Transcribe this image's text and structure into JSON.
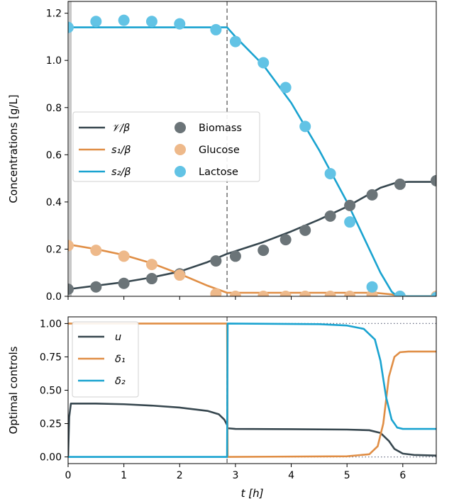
{
  "chart_data": [
    {
      "type": "line",
      "panel": "top",
      "ylabel": "Concentrations [g/L]",
      "xlim": [
        0,
        6.6
      ],
      "ylim": [
        0,
        1.25
      ],
      "xticks": [
        0,
        1,
        2,
        3,
        4,
        5,
        6
      ],
      "yticks": [
        0.0,
        0.2,
        0.4,
        0.6,
        0.8,
        1.0,
        1.2
      ],
      "ytick_labels": [
        "0.0",
        "0.2",
        "0.4",
        "0.6",
        "0.8",
        "1.0",
        "1.2"
      ],
      "vline_x": 2.85,
      "grid": false,
      "legend_placement": "center-left",
      "series": [
        {
          "name": "𝒱/β",
          "kind": "line",
          "color": "#37474f",
          "x": [
            0,
            0.5,
            1.0,
            1.5,
            2.0,
            2.5,
            2.85,
            3.5,
            4.0,
            4.5,
            5.0,
            5.3,
            5.6,
            5.9,
            6.1,
            6.6
          ],
          "y": [
            0.03,
            0.045,
            0.06,
            0.08,
            0.105,
            0.145,
            0.18,
            0.23,
            0.275,
            0.325,
            0.38,
            0.42,
            0.46,
            0.483,
            0.485,
            0.485
          ]
        },
        {
          "name": "s₁/β",
          "kind": "line",
          "color": "#e08e45",
          "x": [
            0,
            0.5,
            1.0,
            1.5,
            2.0,
            2.5,
            2.85,
            3.5,
            4.5,
            5.5,
            5.8,
            6.0,
            6.6
          ],
          "y": [
            0.22,
            0.2,
            0.175,
            0.14,
            0.095,
            0.045,
            0.015,
            0.015,
            0.015,
            0.015,
            0.008,
            0.0,
            0.0
          ]
        },
        {
          "name": "s₂/β",
          "kind": "line",
          "color": "#1aa3d0",
          "x": [
            0,
            2.85,
            3.0,
            3.5,
            4.0,
            4.5,
            5.0,
            5.3,
            5.6,
            5.8,
            5.9,
            6.6
          ],
          "y": [
            1.14,
            1.14,
            1.1,
            0.98,
            0.82,
            0.62,
            0.4,
            0.25,
            0.1,
            0.02,
            0.0,
            0.0
          ]
        },
        {
          "name": "Biomass",
          "kind": "scatter",
          "color": "#6b7478",
          "x": [
            0.0,
            0.5,
            1.0,
            1.5,
            2.0,
            2.65,
            3.0,
            3.5,
            3.9,
            4.25,
            4.7,
            5.05,
            5.45,
            5.95,
            6.6
          ],
          "y": [
            0.03,
            0.04,
            0.055,
            0.075,
            0.095,
            0.15,
            0.17,
            0.195,
            0.24,
            0.28,
            0.34,
            0.385,
            0.43,
            0.475,
            0.49
          ]
        },
        {
          "name": "Glucose",
          "kind": "scatter",
          "color": "#eeb98a",
          "x": [
            0.0,
            0.5,
            1.0,
            1.5,
            2.0,
            2.65,
            3.0,
            3.5,
            3.9,
            4.25,
            4.7,
            5.05,
            5.45,
            5.95,
            6.6
          ],
          "y": [
            0.215,
            0.195,
            0.17,
            0.135,
            0.09,
            0.01,
            0.0,
            0.0,
            0.0,
            0.0,
            0.0,
            0.0,
            0.005,
            0.0,
            0.0
          ]
        },
        {
          "name": "Lactose",
          "kind": "scatter",
          "color": "#62c3e5",
          "x": [
            0.0,
            0.5,
            1.0,
            1.5,
            2.0,
            2.65,
            3.0,
            3.5,
            3.9,
            4.25,
            4.7,
            5.05,
            5.45,
            5.95,
            6.6
          ],
          "y": [
            1.14,
            1.165,
            1.17,
            1.165,
            1.155,
            1.13,
            1.08,
            0.99,
            0.885,
            0.72,
            0.52,
            0.315,
            0.04,
            0.0,
            -0.005
          ]
        }
      ]
    },
    {
      "type": "line",
      "panel": "bottom",
      "xlabel": "t [h]",
      "ylabel": "Optimal controls",
      "xlim": [
        0,
        6.6
      ],
      "ylim": [
        -0.05,
        1.05
      ],
      "xticks": [
        0,
        1,
        2,
        3,
        4,
        5,
        6
      ],
      "yticks": [
        0.0,
        0.25,
        0.5,
        0.75,
        1.0
      ],
      "ytick_labels": [
        "0.00",
        "0.25",
        "0.50",
        "0.75",
        "1.00"
      ],
      "hlines": [
        0,
        1
      ],
      "vline_x": 2.85,
      "grid": false,
      "legend_placement": "top-left",
      "series": [
        {
          "name": "u",
          "color": "#37474f",
          "x": [
            0,
            0.02,
            0.05,
            0.5,
            1.0,
            1.5,
            2.0,
            2.5,
            2.7,
            2.8,
            2.85,
            2.86,
            3.0,
            4.0,
            5.0,
            5.4,
            5.6,
            5.75,
            5.85,
            6.0,
            6.2,
            6.6
          ],
          "y": [
            0,
            0.3,
            0.4,
            0.4,
            0.395,
            0.385,
            0.37,
            0.345,
            0.32,
            0.28,
            0.24,
            0.215,
            0.21,
            0.208,
            0.205,
            0.2,
            0.18,
            0.12,
            0.06,
            0.025,
            0.015,
            0.01
          ]
        },
        {
          "name": "δ₁",
          "color": "#e08e45",
          "x": [
            0,
            2.85,
            2.86,
            5.0,
            5.4,
            5.55,
            5.65,
            5.75,
            5.85,
            5.95,
            6.1,
            6.6
          ],
          "y": [
            1.0,
            1.0,
            0.0,
            0.005,
            0.02,
            0.08,
            0.25,
            0.6,
            0.75,
            0.785,
            0.79,
            0.79
          ]
        },
        {
          "name": "δ₂",
          "color": "#1aa3d0",
          "x": [
            0,
            2.85,
            2.86,
            4.5,
            5.0,
            5.3,
            5.5,
            5.6,
            5.7,
            5.8,
            5.9,
            6.0,
            6.1,
            6.6
          ],
          "y": [
            0.0,
            0.0,
            1.0,
            0.995,
            0.985,
            0.96,
            0.88,
            0.72,
            0.45,
            0.28,
            0.22,
            0.21,
            0.21,
            0.21
          ]
        }
      ]
    }
  ]
}
